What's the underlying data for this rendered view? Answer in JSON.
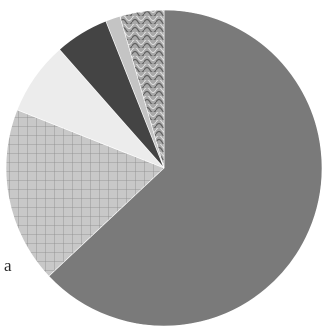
{
  "chart_data": {
    "type": "pie",
    "title": "",
    "start_angle_deg": 0,
    "direction": "clockwise",
    "slices": [
      {
        "value": 63.0,
        "color": "#7a7a7a",
        "pattern": "solid"
      },
      {
        "value": 18.0,
        "color": "#c8c8c8",
        "pattern": "grid"
      },
      {
        "value": 7.5,
        "color": "#ececec",
        "pattern": "solid"
      },
      {
        "value": 5.5,
        "color": "#444444",
        "pattern": "solid"
      },
      {
        "value": 1.5,
        "color": "#c4c4c4",
        "pattern": "solid"
      },
      {
        "value": 4.5,
        "color": "#a9a9a9",
        "pattern": "waves"
      }
    ],
    "visible_text": "a"
  }
}
